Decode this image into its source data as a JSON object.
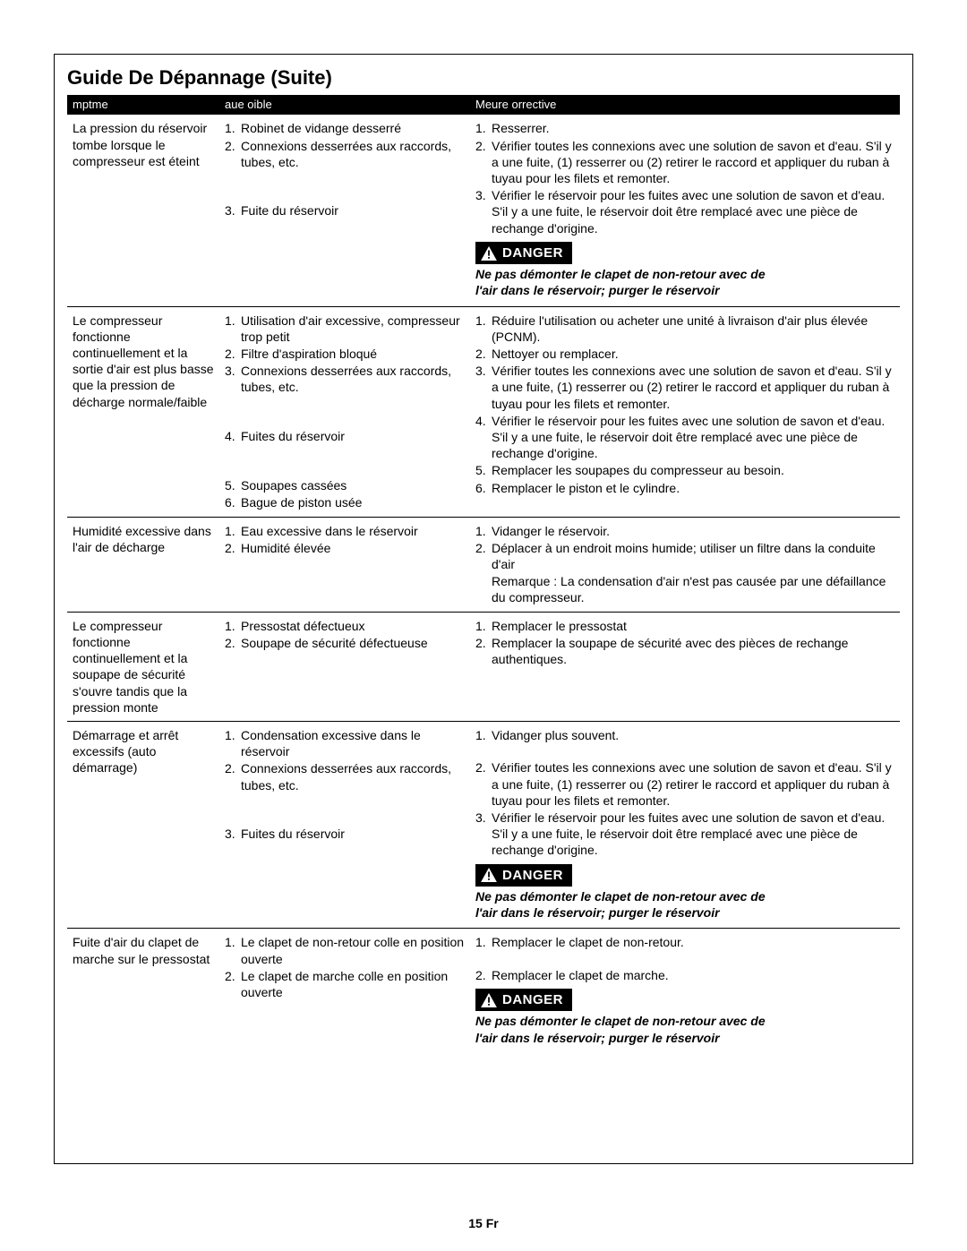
{
  "page": {
    "title": "Guide De Dépannage (Suite)",
    "footer": "15 Fr",
    "headers": {
      "symptom": "mptme",
      "cause": "aue oible",
      "measure": "Meure orrective"
    },
    "danger": {
      "label": "DANGER",
      "note1": "Ne pas démonter le clapet de non-retour avec de",
      "note2": "l'air dans le réservoir; purger le réservoir"
    },
    "rows": [
      {
        "symptom": "La pression du réservoir tombe lorsque le compresseur est éteint",
        "causes": [
          "Robinet de vidange desserré",
          "Connexions desserrées aux raccords, tubes, etc.",
          "Fuite du réservoir"
        ],
        "measures": [
          "Resserrer.",
          "Vérifier toutes les connexions avec une solution de savon et d'eau. S'il y a une fuite, (1) resserrer ou (2) retirer le raccord et appliquer du ruban à tuyau pour les filets et remonter.",
          "Vérifier le réservoir pour les fuites avec une solution de savon et d'eau. S'il y a une fuite, le réservoir doit être remplacé avec une pièce de rechange d'origine."
        ],
        "danger_after": true
      },
      {
        "symptom": "Le compresseur fonctionne continuellement et la sortie d'air est plus basse que la pression de décharge normale/faible",
        "causes": [
          "Utilisation d'air excessive, compresseur trop petit",
          "Filtre d'aspiration bloqué",
          "Connexions desserrées aux raccords, tubes, etc.",
          "Fuites du réservoir",
          "Soupapes cassées",
          "Bague de piston usée"
        ],
        "measures": [
          "Réduire l'utilisation ou acheter une unité à livraison d'air plus élevée (PCNM).",
          "Nettoyer ou remplacer.",
          "Vérifier toutes les connexions avec une solution de savon et d'eau. S'il y a une fuite, (1) resserrer ou (2) retirer le raccord et appliquer du ruban à tuyau pour les filets et remonter.",
          "Vérifier le réservoir pour les fuites avec une solution de savon et d'eau. S'il y a une fuite, le réservoir doit être remplacé avec une pièce de rechange d'origine.",
          "Remplacer les soupapes du compresseur au besoin.",
          "Remplacer le piston et le cylindre."
        ],
        "danger_after": false
      },
      {
        "symptom": "Humidité excessive dans l'air de décharge",
        "causes": [
          "Eau excessive dans le réservoir",
          "Humidité élevée"
        ],
        "measures": [
          "Vidanger le réservoir.",
          "Déplacer à un endroit moins humide; utiliser un filtre dans la conduite d'air\nRemarque : La condensation d'air n'est pas causée par une défaillance du compresseur."
        ],
        "danger_after": false
      },
      {
        "symptom": "Le compresseur fonctionne continuellement et la soupape de sécurité s'ouvre tandis que la pression monte",
        "causes": [
          "Pressostat défectueux",
          "Soupape de sécurité défectueuse"
        ],
        "measures": [
          "Remplacer le pressostat",
          "Remplacer la soupape de sécurité avec des pièces de rechange authentiques."
        ],
        "danger_after": false
      },
      {
        "symptom": "Démarrage et arrêt excessifs (auto démarrage)",
        "causes": [
          "Condensation excessive dans le réservoir",
          "Connexions desserrées aux raccords, tubes, etc.",
          "Fuites du réservoir"
        ],
        "measures": [
          "Vidanger plus souvent.",
          "Vérifier toutes les connexions avec une solution de savon et d'eau. S'il y a une fuite, (1) resserrer ou (2) retirer le raccord et appliquer du ruban à tuyau pour les filets et remonter.",
          "Vérifier le réservoir pour les fuites avec une solution de savon et d'eau. S'il y a une fuite, le réservoir doit être remplacé avec une pièce de rechange d'origine."
        ],
        "danger_after": true
      },
      {
        "symptom": "Fuite d'air du clapet de marche sur le pressostat",
        "causes": [
          "Le clapet de non-retour colle en position ouverte",
          "Le clapet de marche colle en position ouverte"
        ],
        "measures": [
          "Remplacer le clapet de non-retour.",
          "Remplacer le clapet de marche."
        ],
        "danger_after": true
      }
    ]
  },
  "style": {
    "colors": {
      "bg": "#ffffff",
      "fg": "#000000",
      "header_bg": "#000000",
      "header_fg": "#ffffff"
    },
    "fonts": {
      "title_pt": 22,
      "body_pt": 14,
      "header_pt": 13
    }
  }
}
